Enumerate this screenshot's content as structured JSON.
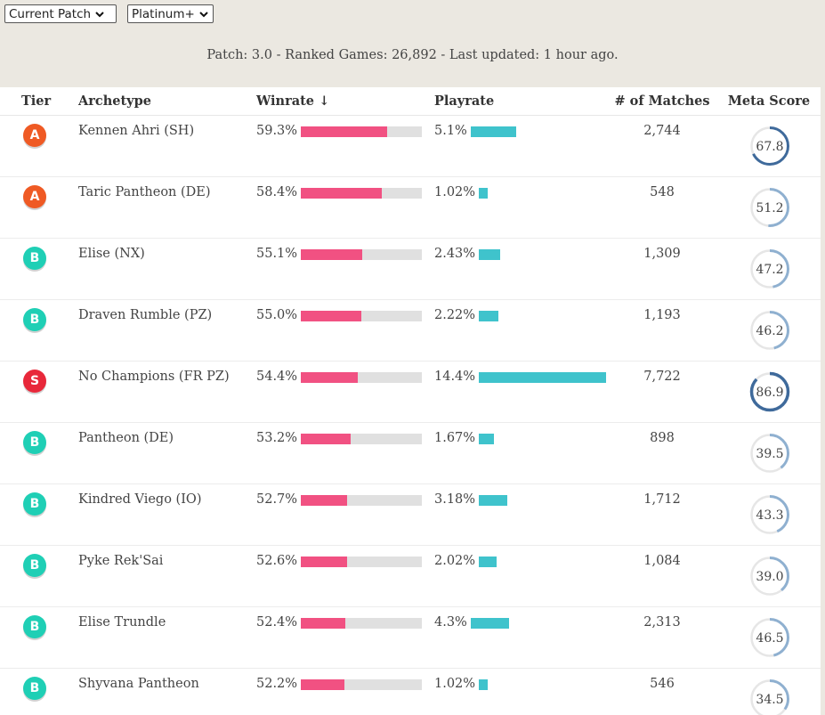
{
  "filters": {
    "patch_select": "Current Patch",
    "rank_select": "Platinum+"
  },
  "summary": "Patch: 3.0 - Ranked Games: 26,892 - Last updated: 1 hour ago.",
  "table": {
    "headers": {
      "tier": "Tier",
      "archetype": "Archetype",
      "winrate": "Winrate ↓",
      "playrate": "Playrate",
      "matches": "# of Matches",
      "meta": "Meta Score"
    },
    "rows": [
      {
        "tier": "A",
        "archetype": "Kennen Ahri (SH)",
        "winrate": "59.3%",
        "win_value": 0.593,
        "playrate": "5.1%",
        "play_value": 5.1,
        "matches": "2,744",
        "meta": "67.8",
        "meta_value": 67.8
      },
      {
        "tier": "A",
        "archetype": "Taric Pantheon (DE)",
        "winrate": "58.4%",
        "win_value": 0.584,
        "playrate": "1.02%",
        "play_value": 1.02,
        "matches": "548",
        "meta": "51.2",
        "meta_value": 51.2
      },
      {
        "tier": "B",
        "archetype": "Elise (NX)",
        "winrate": "55.1%",
        "win_value": 0.551,
        "playrate": "2.43%",
        "play_value": 2.43,
        "matches": "1,309",
        "meta": "47.2",
        "meta_value": 47.2
      },
      {
        "tier": "B",
        "archetype": "Draven Rumble (PZ)",
        "winrate": "55.0%",
        "win_value": 0.55,
        "playrate": "2.22%",
        "play_value": 2.22,
        "matches": "1,193",
        "meta": "46.2",
        "meta_value": 46.2
      },
      {
        "tier": "S",
        "archetype": "No Champions (FR PZ)",
        "winrate": "54.4%",
        "win_value": 0.544,
        "playrate": "14.4%",
        "play_value": 14.4,
        "matches": "7,722",
        "meta": "86.9",
        "meta_value": 86.9
      },
      {
        "tier": "B",
        "archetype": "Pantheon (DE)",
        "winrate": "53.2%",
        "win_value": 0.532,
        "playrate": "1.67%",
        "play_value": 1.67,
        "matches": "898",
        "meta": "39.5",
        "meta_value": 39.5
      },
      {
        "tier": "B",
        "archetype": "Kindred Viego (IO)",
        "winrate": "52.7%",
        "win_value": 0.527,
        "playrate": "3.18%",
        "play_value": 3.18,
        "matches": "1,712",
        "meta": "43.3",
        "meta_value": 43.3
      },
      {
        "tier": "B",
        "archetype": "Pyke Rek'Sai",
        "winrate": "52.6%",
        "win_value": 0.526,
        "playrate": "2.02%",
        "play_value": 2.02,
        "matches": "1,084",
        "meta": "39.0",
        "meta_value": 39.0
      },
      {
        "tier": "B",
        "archetype": "Elise Trundle",
        "winrate": "52.4%",
        "win_value": 0.524,
        "playrate": "4.3%",
        "play_value": 4.3,
        "matches": "2,313",
        "meta": "46.5",
        "meta_value": 46.5
      },
      {
        "tier": "B",
        "archetype": "Shyvana Pantheon",
        "winrate": "52.2%",
        "win_value": 0.522,
        "playrate": "1.02%",
        "play_value": 1.02,
        "matches": "546",
        "meta": "34.5",
        "meta_value": 34.5
      }
    ]
  },
  "colors": {
    "tier_A": "#ef5a24",
    "tier_B": "#1fcfb5",
    "tier_S": "#e8283a",
    "winrate_bar": "#f15182",
    "playrate_bar": "#3fc3cc",
    "ring_track": "#e6e6e6",
    "ring_strong": "#3f6a9b",
    "ring_light": "#8fb0d0"
  }
}
